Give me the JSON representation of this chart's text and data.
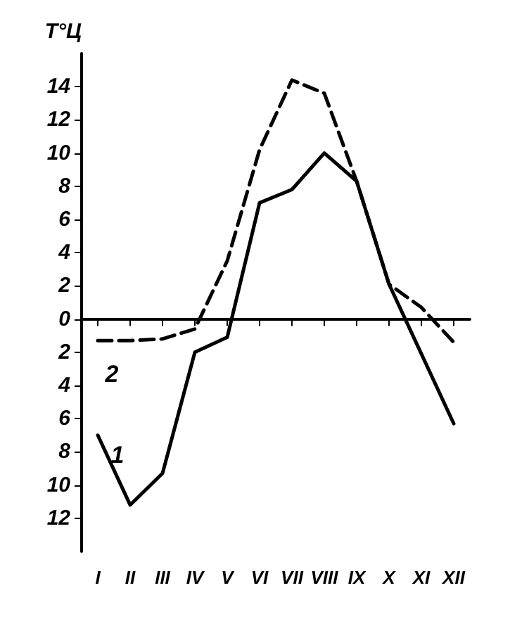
{
  "chart_data": {
    "type": "line",
    "ylabel": "T°Ц",
    "categories": [
      "I",
      "II",
      "III",
      "IV",
      "V",
      "VI",
      "VII",
      "VIII",
      "IX",
      "X",
      "XI",
      "XII"
    ],
    "series": [
      {
        "name": "1",
        "color": "#000000",
        "line_style": "solid",
        "values": [
          -7,
          -11.2,
          -9.3,
          -2,
          -1.1,
          7,
          7.8,
          10,
          8.3,
          2.1,
          -2.1,
          -6.3
        ]
      },
      {
        "name": "2",
        "color": "#000000",
        "line_style": "dashed",
        "values": [
          -1.3,
          -1.3,
          -1.2,
          -0.6,
          3.5,
          10.2,
          14.4,
          13.6,
          8.3,
          2.1,
          0.7,
          -1.4
        ]
      }
    ],
    "ref_lines": [
      {
        "axis": "y",
        "value": 0,
        "color": "#000000"
      }
    ],
    "ylim": [
      -14,
      16
    ],
    "yticks": [
      {
        "value": -12,
        "label": "12"
      },
      {
        "value": -10,
        "label": "10"
      },
      {
        "value": -8,
        "label": "8"
      },
      {
        "value": -6,
        "label": "6"
      },
      {
        "value": -4,
        "label": "4"
      },
      {
        "value": -2,
        "label": "2"
      },
      0,
      2,
      4,
      6,
      8,
      10,
      12,
      14
    ],
    "grid": false,
    "marker": "none"
  }
}
